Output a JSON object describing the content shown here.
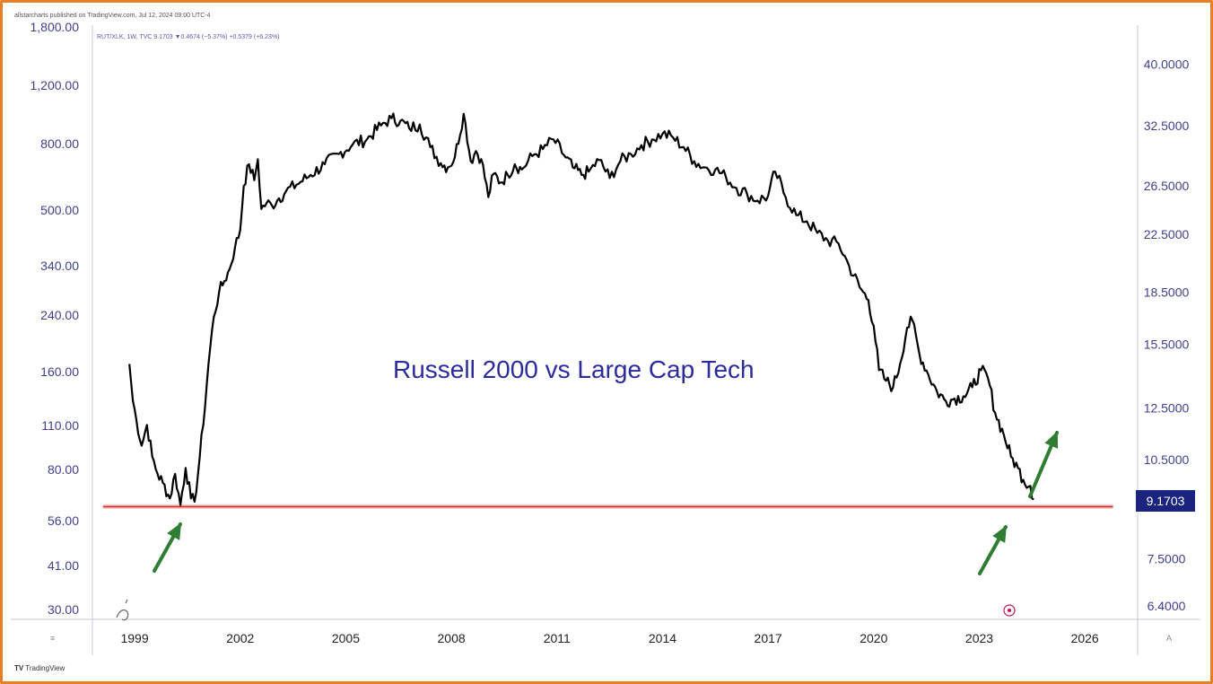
{
  "page": {
    "top_meta": "allstarcharts published on TradingView.com, Jul 12, 2024 09:00 UTC-4",
    "series_meta": "RUT/XLK, 1W, TVC  9.1703  ▼0.4674 (−5.37%)  +0.5379 (+6.23%)",
    "footer_text": "TradingView",
    "footer_logo": "TV",
    "axis_menu_left": "≡",
    "axis_menu_right": "A"
  },
  "colors": {
    "frame": "#e67e22",
    "line": "#000000",
    "support": "#d32f2f",
    "arrow": "#2e7d32",
    "title": "#2b2b9e",
    "last_tag_bg": "#1a237e",
    "axis_text": "#3f3f8f"
  },
  "chart_data": {
    "type": "line",
    "title": "Russell 2000 vs Large Cap Tech",
    "x_ticks": [
      "1999",
      "2002",
      "2005",
      "2008",
      "2011",
      "2014",
      "2017",
      "2020",
      "2023",
      "2026"
    ],
    "xlim": [
      1997.8,
      2027.5
    ],
    "left_axis": {
      "ticks": [
        "30.00",
        "41.00",
        "56.00",
        "80.00",
        "110.00",
        "160.00",
        "240.00",
        "340.00",
        "500.00",
        "800.00",
        "1,200.00",
        "1,800.00"
      ],
      "scale": "log"
    },
    "right_axis": {
      "ticks": [
        "6.4000",
        "7.5000",
        "9.1703",
        "10.5000",
        "12.5000",
        "15.5000",
        "18.5000",
        "22.5000",
        "26.5000",
        "32.5000",
        "40.0000"
      ],
      "scale": "log",
      "ylim": [
        6.3,
        44.0
      ]
    },
    "last_value": "9.1703",
    "support_level": 8.95,
    "series": [
      {
        "x": [
          1998.85,
          1998.95,
          1999.05,
          1999.2,
          1999.35,
          1999.5,
          1999.65,
          1999.8,
          2000.0,
          2000.15,
          2000.3,
          2000.45,
          2000.6,
          2000.7,
          2000.8,
          2000.95,
          2001.1,
          2001.25,
          2001.4,
          2001.55,
          2001.7,
          2001.85,
          2002.0,
          2002.1,
          2002.25,
          2002.4,
          2002.5,
          2002.6,
          2002.75,
          2002.9,
          2003.1,
          2003.3,
          2003.6,
          2004.0,
          2004.4,
          2004.8,
          2005.2,
          2005.6,
          2006.0,
          2006.3,
          2006.55,
          2006.8,
          2007.1,
          2007.4,
          2007.7,
          2007.9,
          2008.1,
          2008.35,
          2008.55,
          2008.7,
          2008.85,
          2009.05,
          2009.2,
          2009.4,
          2009.6,
          2009.8,
          2010.0,
          2010.3,
          2010.6,
          2010.9,
          2011.2,
          2011.45,
          2011.7,
          2011.9,
          2012.2,
          2012.5,
          2012.8,
          2013.1,
          2013.4,
          2013.7,
          2014.0,
          2014.3,
          2014.6,
          2014.9,
          2015.2,
          2015.5,
          2015.8,
          2016.1,
          2016.4,
          2016.7,
          2017.0,
          2017.2,
          2017.5,
          2017.8,
          2018.1,
          2018.4,
          2018.7,
          2019.0,
          2019.3,
          2019.6,
          2019.85,
          2020.0,
          2020.15,
          2020.35,
          2020.55,
          2020.75,
          2020.95,
          2021.1,
          2021.3,
          2021.55,
          2021.8,
          2022.05,
          2022.3,
          2022.55,
          2022.8,
          2023.05,
          2023.25,
          2023.45,
          2023.7,
          2023.9,
          2024.1,
          2024.25,
          2024.45,
          2024.55
        ],
        "values": [
          14.5,
          12.8,
          12.0,
          11.0,
          11.8,
          10.6,
          10.0,
          9.7,
          9.2,
          10.0,
          9.0,
          10.2,
          9.2,
          9.1,
          10.0,
          11.8,
          14.5,
          17.0,
          18.5,
          19.2,
          20.0,
          21.5,
          22.8,
          26.5,
          28.5,
          27.0,
          29.0,
          24.5,
          25.0,
          24.8,
          25.4,
          26.0,
          26.6,
          27.5,
          28.5,
          29.5,
          30.5,
          31.0,
          32.5,
          33.3,
          33.0,
          32.2,
          32.6,
          30.2,
          28.6,
          28.2,
          29.2,
          33.8,
          28.8,
          29.8,
          29.0,
          25.5,
          27.6,
          26.8,
          27.5,
          28.5,
          28.0,
          29.3,
          30.0,
          31.0,
          29.4,
          28.2,
          27.5,
          27.8,
          28.9,
          27.2,
          28.8,
          29.5,
          30.4,
          31.0,
          31.6,
          31.2,
          30.2,
          28.8,
          28.2,
          28.0,
          27.3,
          26.3,
          25.8,
          25.2,
          25.6,
          27.8,
          25.5,
          24.0,
          23.5,
          22.6,
          22.0,
          21.8,
          20.2,
          18.8,
          18.0,
          16.5,
          14.2,
          13.7,
          13.4,
          14.5,
          16.4,
          16.8,
          15.0,
          14.0,
          13.2,
          12.8,
          12.9,
          13.0,
          13.4,
          14.2,
          13.8,
          12.3,
          11.4,
          10.6,
          10.2,
          9.8,
          9.6,
          9.17
        ]
      }
    ],
    "annotations": [
      {
        "type": "horizontal-line",
        "value": 8.95,
        "x_from": 1998.1,
        "x_to": 2026.8
      },
      {
        "type": "arrow-up",
        "near_x": 1999.8
      },
      {
        "type": "arrow-up",
        "near_x": 2024.3
      },
      {
        "type": "arrow-up",
        "near_x": 2025.5
      }
    ],
    "grid": false,
    "legend": "none"
  }
}
